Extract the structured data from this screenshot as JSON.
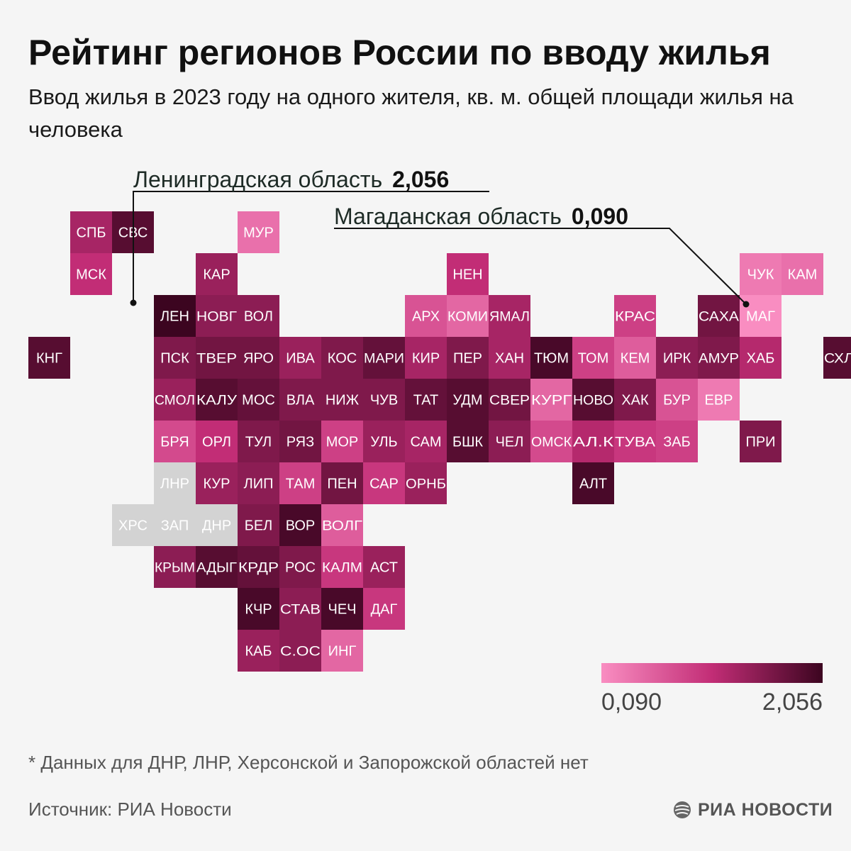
{
  "title": "Рейтинг регионов России по вводу жилья",
  "subtitle": "Ввод жилья в 2023 году на одного жителя, кв. м. общей площади жилья на человека",
  "callouts": {
    "max": {
      "region": "Ленинградская область",
      "value": "2,056"
    },
    "min": {
      "region": "Магаданская область",
      "value": "0,090"
    }
  },
  "legend": {
    "min_label": "0,090",
    "max_label": "2,056"
  },
  "colors": {
    "low": "#f98dc1",
    "high": "#3c0520",
    "no_data": "#d3d3d3",
    "tile_text": "#ffffff",
    "background": "#f5f5f5"
  },
  "chart_data": {
    "type": "heatmap",
    "title": "Рейтинг регионов России по вводу жилья",
    "value_range": [
      0.09,
      2.056
    ],
    "scale_note": "intensity values estimated from tile color (0 = lightest 0,090, 1 = darkest 2,056)",
    "tiles": [
      {
        "label": "СПБ",
        "col": 0,
        "row": 0,
        "t": 0.6
      },
      {
        "label": "СВС",
        "col": 1,
        "row": 0,
        "t": 0.9
      },
      {
        "label": "МУР",
        "col": 4,
        "row": 0,
        "t": 0.15
      },
      {
        "label": "МСК",
        "col": 0,
        "row": 1,
        "t": 0.5
      },
      {
        "label": "КАР",
        "col": 3,
        "row": 1,
        "t": 0.65
      },
      {
        "label": "НЕН",
        "col": 9,
        "row": 1,
        "t": 0.5
      },
      {
        "label": "ЧУК",
        "col": 16,
        "row": 1,
        "t": 0.1
      },
      {
        "label": "КАМ",
        "col": 17,
        "row": 1,
        "t": 0.15
      },
      {
        "label": "ЛЕН",
        "col": 2,
        "row": 2,
        "t": 1.0
      },
      {
        "label": "НОВГ",
        "col": 3,
        "row": 2,
        "t": 0.7
      },
      {
        "label": "ВОЛ",
        "col": 4,
        "row": 2,
        "t": 0.7
      },
      {
        "label": "АРХ",
        "col": 8,
        "row": 2,
        "t": 0.3
      },
      {
        "label": "КОМИ",
        "col": 9,
        "row": 2,
        "t": 0.2
      },
      {
        "label": "ЯМАЛ",
        "col": 10,
        "row": 2,
        "t": 0.6
      },
      {
        "label": "КРАС",
        "col": 13,
        "row": 2,
        "t": 0.4
      },
      {
        "label": "САХА",
        "col": 15,
        "row": 2,
        "t": 0.8
      },
      {
        "label": "МАГ",
        "col": 16,
        "row": 2,
        "t": 0.0
      },
      {
        "label": "КНГ",
        "col": -1,
        "row": 3,
        "t": 0.9
      },
      {
        "label": "ПСК",
        "col": 2,
        "row": 3,
        "t": 0.75
      },
      {
        "label": "ТВЕР",
        "col": 3,
        "row": 3,
        "t": 0.8
      },
      {
        "label": "ЯРО",
        "col": 4,
        "row": 3,
        "t": 0.8
      },
      {
        "label": "ИВА",
        "col": 5,
        "row": 3,
        "t": 0.65
      },
      {
        "label": "КОС",
        "col": 6,
        "row": 3,
        "t": 0.75
      },
      {
        "label": "МАРИ",
        "col": 7,
        "row": 3,
        "t": 0.85
      },
      {
        "label": "КИР",
        "col": 8,
        "row": 3,
        "t": 0.6
      },
      {
        "label": "ПЕР",
        "col": 9,
        "row": 3,
        "t": 0.75
      },
      {
        "label": "ХАН",
        "col": 10,
        "row": 3,
        "t": 0.6
      },
      {
        "label": "ТЮМ",
        "col": 11,
        "row": 3,
        "t": 0.95
      },
      {
        "label": "ТОМ",
        "col": 12,
        "row": 3,
        "t": 0.4
      },
      {
        "label": "КЕМ",
        "col": 13,
        "row": 3,
        "t": 0.25
      },
      {
        "label": "ИРК",
        "col": 14,
        "row": 3,
        "t": 0.7
      },
      {
        "label": "АМУР",
        "col": 15,
        "row": 3,
        "t": 0.75
      },
      {
        "label": "ХАБ",
        "col": 16,
        "row": 3,
        "t": 0.55
      },
      {
        "label": "СХЛН",
        "col": 18,
        "row": 3,
        "t": 0.9
      },
      {
        "label": "СМОЛ",
        "col": 2,
        "row": 4,
        "t": 0.65
      },
      {
        "label": "КАЛУ",
        "col": 3,
        "row": 4,
        "t": 0.9
      },
      {
        "label": "МОС",
        "col": 4,
        "row": 4,
        "t": 0.85
      },
      {
        "label": "ВЛА",
        "col": 5,
        "row": 4,
        "t": 0.75
      },
      {
        "label": "НИЖ",
        "col": 6,
        "row": 4,
        "t": 0.75
      },
      {
        "label": "ЧУВ",
        "col": 7,
        "row": 4,
        "t": 0.75
      },
      {
        "label": "ТАТ",
        "col": 8,
        "row": 4,
        "t": 0.85
      },
      {
        "label": "УДМ",
        "col": 9,
        "row": 4,
        "t": 0.9
      },
      {
        "label": "СВЕР",
        "col": 10,
        "row": 4,
        "t": 0.8
      },
      {
        "label": "КУРГ",
        "col": 11,
        "row": 4,
        "t": 0.2
      },
      {
        "label": "НОВО",
        "col": 12,
        "row": 4,
        "t": 0.9
      },
      {
        "label": "ХАК",
        "col": 13,
        "row": 4,
        "t": 0.75
      },
      {
        "label": "БУР",
        "col": 14,
        "row": 4,
        "t": 0.3
      },
      {
        "label": "ЕВР",
        "col": 15,
        "row": 4,
        "t": 0.1
      },
      {
        "label": "БРЯ",
        "col": 2,
        "row": 5,
        "t": 0.35
      },
      {
        "label": "ОРЛ",
        "col": 3,
        "row": 5,
        "t": 0.5
      },
      {
        "label": "ТУЛ",
        "col": 4,
        "row": 5,
        "t": 0.75
      },
      {
        "label": "РЯЗ",
        "col": 5,
        "row": 5,
        "t": 0.8
      },
      {
        "label": "МОР",
        "col": 6,
        "row": 5,
        "t": 0.4
      },
      {
        "label": "УЛЬ",
        "col": 7,
        "row": 5,
        "t": 0.65
      },
      {
        "label": "САМ",
        "col": 8,
        "row": 5,
        "t": 0.6
      },
      {
        "label": "БШК",
        "col": 9,
        "row": 5,
        "t": 0.9
      },
      {
        "label": "ЧЕЛ",
        "col": 10,
        "row": 5,
        "t": 0.7
      },
      {
        "label": "ОМСК",
        "col": 11,
        "row": 5,
        "t": 0.35
      },
      {
        "label": "АЛ.К",
        "col": 12,
        "row": 5,
        "t": 0.55
      },
      {
        "label": "ТУВА",
        "col": 13,
        "row": 5,
        "t": 0.45
      },
      {
        "label": "ЗАБ",
        "col": 14,
        "row": 5,
        "t": 0.4
      },
      {
        "label": "ПРИ",
        "col": 16,
        "row": 5,
        "t": 0.75
      },
      {
        "label": "ЛНР",
        "col": 2,
        "row": 6,
        "nodata": true
      },
      {
        "label": "КУР",
        "col": 3,
        "row": 6,
        "t": 0.65
      },
      {
        "label": "ЛИП",
        "col": 4,
        "row": 6,
        "t": 0.7
      },
      {
        "label": "ТАМ",
        "col": 5,
        "row": 6,
        "t": 0.4
      },
      {
        "label": "ПЕН",
        "col": 6,
        "row": 6,
        "t": 0.8
      },
      {
        "label": "САР",
        "col": 7,
        "row": 6,
        "t": 0.45
      },
      {
        "label": "ОРНБ",
        "col": 8,
        "row": 6,
        "t": 0.65
      },
      {
        "label": "АЛТ",
        "col": 12,
        "row": 6,
        "t": 0.95
      },
      {
        "label": "ХРС",
        "col": 1,
        "row": 7,
        "nodata": true
      },
      {
        "label": "ЗАП",
        "col": 2,
        "row": 7,
        "nodata": true
      },
      {
        "label": "ДНР",
        "col": 3,
        "row": 7,
        "nodata": true
      },
      {
        "label": "БЕЛ",
        "col": 4,
        "row": 7,
        "t": 0.75
      },
      {
        "label": "ВОР",
        "col": 5,
        "row": 7,
        "t": 0.95
      },
      {
        "label": "ВОЛГ",
        "col": 6,
        "row": 7,
        "t": 0.25
      },
      {
        "label": "КРЫМ",
        "col": 2,
        "row": 8,
        "t": 0.7
      },
      {
        "label": "АДЫГ",
        "col": 3,
        "row": 8,
        "t": 0.9
      },
      {
        "label": "КРДР",
        "col": 4,
        "row": 8,
        "t": 0.85
      },
      {
        "label": "РОС",
        "col": 5,
        "row": 8,
        "t": 0.75
      },
      {
        "label": "КАЛМ",
        "col": 6,
        "row": 8,
        "t": 0.45
      },
      {
        "label": "АСТ",
        "col": 7,
        "row": 8,
        "t": 0.65
      },
      {
        "label": "КЧР",
        "col": 4,
        "row": 9,
        "t": 0.95
      },
      {
        "label": "СТАВ",
        "col": 5,
        "row": 9,
        "t": 0.7
      },
      {
        "label": "ЧЕЧ",
        "col": 6,
        "row": 9,
        "t": 0.95
      },
      {
        "label": "ДАГ",
        "col": 7,
        "row": 9,
        "t": 0.45
      },
      {
        "label": "КАБ",
        "col": 4,
        "row": 10,
        "t": 0.65
      },
      {
        "label": "С.ОС",
        "col": 5,
        "row": 10,
        "t": 0.7
      },
      {
        "label": "ИНГ",
        "col": 6,
        "row": 10,
        "t": 0.2
      }
    ]
  },
  "footnote": "* Данных для ДНР, ЛНР, Херсонской и Запорожской областей нет",
  "source": "Источник: РИА Новости",
  "logo_text": "РИА НОВОСТИ"
}
